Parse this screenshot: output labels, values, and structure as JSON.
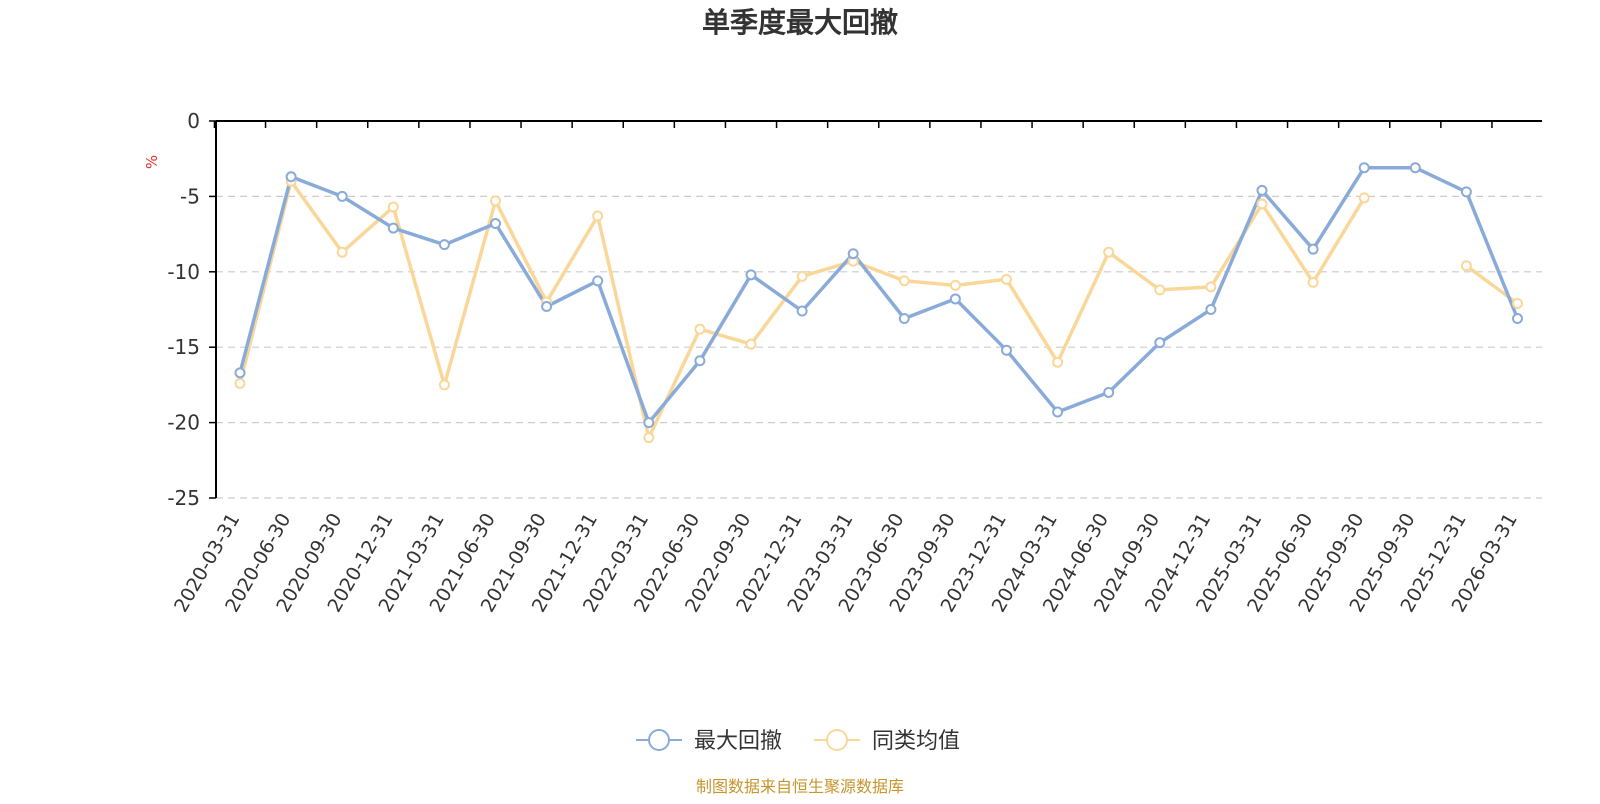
{
  "chart_data": {
    "type": "line",
    "title": "单季度最大回撤",
    "ylabel": "%",
    "xlabel": "",
    "ylim": [
      -25,
      0
    ],
    "yticks": [
      0,
      -5,
      -10,
      -15,
      -20,
      -25
    ],
    "grid": true,
    "legend_position": "bottom-center",
    "categories": [
      "2020-03-31",
      "2020-06-30",
      "2020-09-30",
      "2020-12-31",
      "2021-03-31",
      "2021-06-30",
      "2021-09-30",
      "2021-12-31",
      "2022-03-31",
      "2022-06-30",
      "2022-09-30",
      "2022-12-31",
      "2023-03-31",
      "2023-06-30",
      "2023-09-30",
      "2023-12-31",
      "2024-03-31",
      "2024-06-30",
      "2024-09-30",
      "2024-12-31",
      "2025-03-31",
      "2025-06-30",
      "2025-09-30",
      "2025-09-30",
      "2025-12-31",
      "2026-03-31"
    ],
    "series": [
      {
        "name": "最大回撤",
        "color": "#8aabd9",
        "values": [
          -16.7,
          -3.7,
          -5.0,
          -7.1,
          -8.2,
          -6.8,
          -12.3,
          -10.6,
          -20.0,
          -15.9,
          -10.2,
          -12.6,
          -8.8,
          -13.1,
          -11.8,
          -15.2,
          -19.3,
          -18.0,
          -14.7,
          -12.5,
          -4.6,
          -8.5,
          -3.1,
          -3.1,
          -4.7,
          -13.1
        ]
      },
      {
        "name": "同类均值",
        "color": "#fad799",
        "values": [
          -17.4,
          -4.0,
          -8.7,
          -5.7,
          -17.5,
          -5.3,
          -12.0,
          -6.3,
          -21.0,
          -13.8,
          -14.8,
          -10.3,
          -9.3,
          -10.6,
          -10.9,
          -10.5,
          -16.0,
          -8.7,
          -11.2,
          -11.0,
          -5.5,
          -10.7,
          -5.1,
          null,
          -9.6,
          -12.1
        ]
      }
    ],
    "source": "制图数据来自恒生聚源数据库",
    "unit_color": "#e8322c",
    "source_color": "#c7952e"
  }
}
